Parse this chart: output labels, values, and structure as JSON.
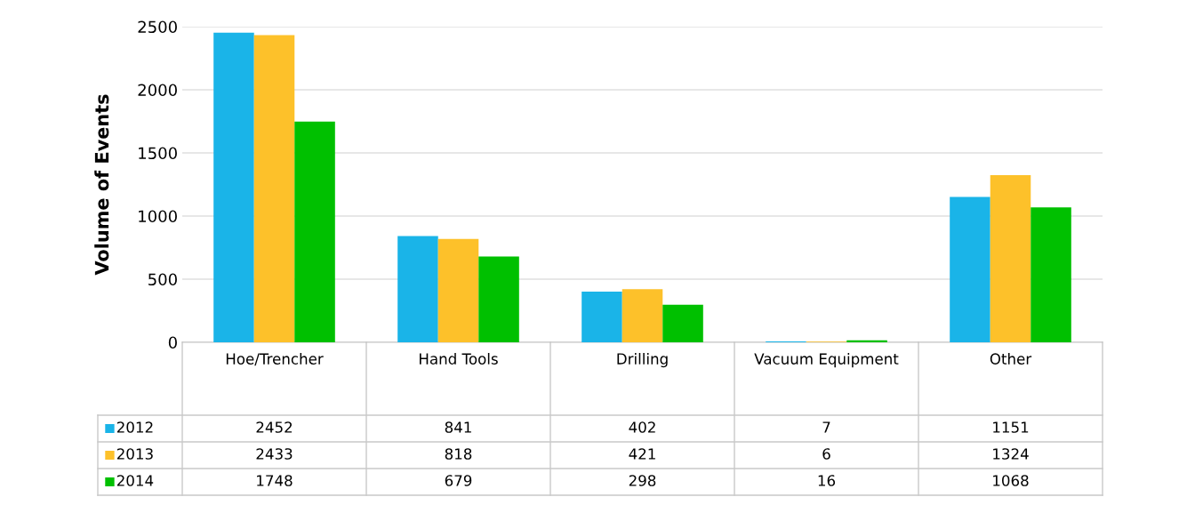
{
  "chart_data": {
    "type": "bar",
    "ylabel": "Volume of Events",
    "categories": [
      "Hoe/Trencher",
      "Hand Tools",
      "Drilling",
      "Vacuum Equipment",
      "Other"
    ],
    "series": [
      {
        "name": "2012",
        "color": "#1ab4e8",
        "values": [
          2452,
          841,
          402,
          7,
          1151
        ]
      },
      {
        "name": "2013",
        "color": "#fdc12a",
        "values": [
          2433,
          818,
          421,
          6,
          1324
        ]
      },
      {
        "name": "2014",
        "color": "#00c000",
        "values": [
          1748,
          679,
          298,
          16,
          1068
        ]
      }
    ],
    "ylim": [
      0,
      2500
    ],
    "yticks": [
      0,
      500,
      1000,
      1500,
      2000,
      2500
    ],
    "grid": "y",
    "legend": "bottom",
    "data_labels": true
  }
}
